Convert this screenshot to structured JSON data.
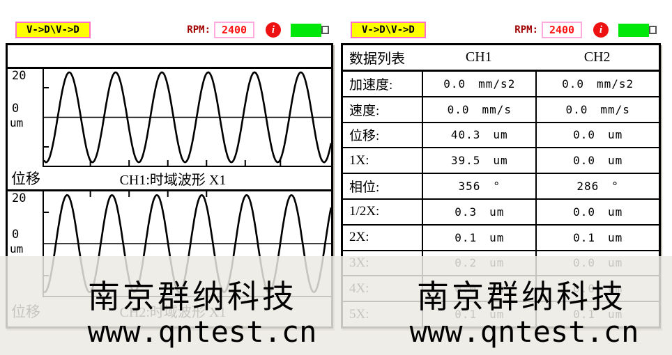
{
  "watermark": {
    "company": "南京群纳科技",
    "url": "www.qntest.cn"
  },
  "header": {
    "mode": "V->D\\V->D",
    "rpm_label": "RPM:",
    "rpm_value": "2400",
    "info": "i"
  },
  "left_panel": {
    "ch1": {
      "axis": "位移",
      "caption": "CH1:时域波形 X1",
      "y_top": "20",
      "y_zero": "0",
      "y_unit": "um"
    },
    "ch2": {
      "axis": "位移",
      "caption": "CH2:时域波形 X1",
      "y_top": "20",
      "y_zero": "0",
      "y_unit": "um"
    }
  },
  "table": {
    "headers": [
      "数据列表",
      "CH1",
      "CH2"
    ],
    "rows": [
      {
        "label": "加速度:",
        "ch1": "0.0",
        "ch1_unit": "mm/s2",
        "ch2": "0.0",
        "ch2_unit": "mm/s2"
      },
      {
        "label": "速度:",
        "ch1": "0.0",
        "ch1_unit": "mm/s",
        "ch2": "0.0",
        "ch2_unit": "mm/s"
      },
      {
        "label": "位移:",
        "ch1": "40.3",
        "ch1_unit": "um",
        "ch2": "0.0",
        "ch2_unit": "um"
      },
      {
        "label": "1X:",
        "ch1": "39.5",
        "ch1_unit": "um",
        "ch2": "0.0",
        "ch2_unit": "um"
      },
      {
        "label": "相位:",
        "ch1": "356",
        "ch1_unit": "°",
        "ch2": "286",
        "ch2_unit": "°"
      },
      {
        "label": "1/2X:",
        "ch1": "0.3",
        "ch1_unit": "um",
        "ch2": "0.0",
        "ch2_unit": "um"
      },
      {
        "label": "2X:",
        "ch1": "0.1",
        "ch1_unit": "um",
        "ch2": "0.1",
        "ch2_unit": "um"
      },
      {
        "label": "3X:",
        "ch1": "0.2",
        "ch1_unit": "um",
        "ch2": "0.0",
        "ch2_unit": "um"
      },
      {
        "label": "4X:",
        "ch1": "0.0",
        "ch1_unit": "um",
        "ch2": "0.0",
        "ch2_unit": "um"
      },
      {
        "label": "5X:",
        "ch1": "0.1",
        "ch1_unit": "um",
        "ch2": "0.1",
        "ch2_unit": "um"
      }
    ]
  },
  "colors": {
    "mode_bg": "#ffff00",
    "mode_border": "#ff6ec7",
    "rpm_label": "#a00000",
    "rpm_value": "#ff1111",
    "info_bg": "#ee1111",
    "battery": "#00e80a"
  },
  "chart_data": [
    {
      "type": "line",
      "waveform": "sine",
      "title": "CH1:时域波形 X1",
      "axis_label": "位移",
      "ylabel": "um",
      "y_ticks": [
        20,
        0
      ],
      "y_range": [
        -25,
        25
      ],
      "amplitude": 20,
      "cycles": 6.2,
      "amplitude_frac": 0.93,
      "start_phase_deg": -107,
      "grid": false,
      "legend": "none"
    },
    {
      "type": "line",
      "waveform": "sine",
      "title": "CH2:时域波形 X1",
      "axis_label": "位移",
      "ylabel": "um",
      "y_ticks": [
        20,
        0
      ],
      "y_range": [
        -25,
        25
      ],
      "amplitude": 20,
      "cycles": 6.4,
      "amplitude_frac": 0.93,
      "start_phase_deg": -96,
      "grid": false,
      "legend": "none"
    }
  ]
}
